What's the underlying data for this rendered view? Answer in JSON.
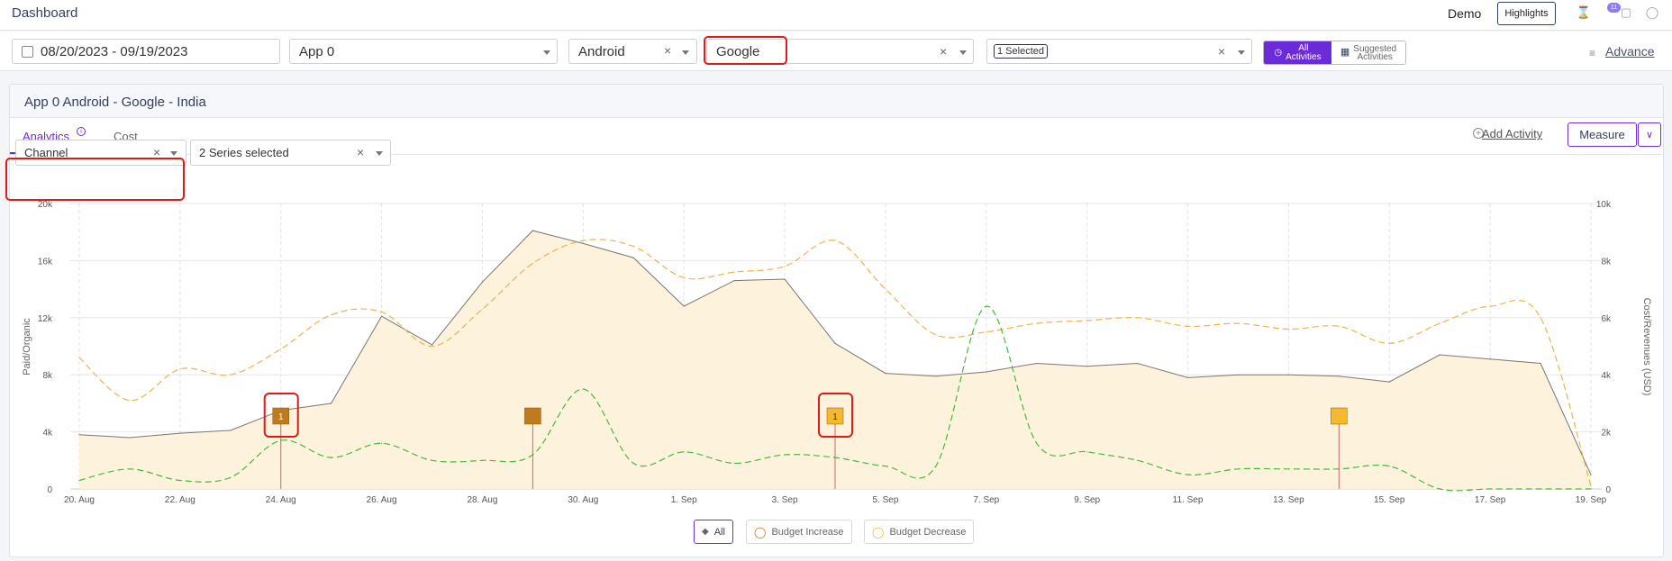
{
  "header": {
    "title": "Dashboard",
    "demo_label": "Demo",
    "highlights_label": "Highlights",
    "notification_count": "11"
  },
  "filters": {
    "date_range": "08/20/2023 - 09/19/2023",
    "app": "App 0",
    "platform": "Android",
    "network": "Google",
    "selection": "1 Selected",
    "all_activities": [
      "All",
      "Activities"
    ],
    "suggested_activities": [
      "Suggested",
      "Activities"
    ],
    "advance_label": "Advance"
  },
  "panel": {
    "title": "App 0 Android - Google - India",
    "tabs": [
      "Analytics",
      "Cost"
    ],
    "info_icon": "i",
    "add_activity_label": "Add Activity",
    "measure_label": "Measure",
    "group_by": "Channel",
    "series_select": "2 Series selected"
  },
  "legend": {
    "all": "All",
    "budget_increase": "Budget Increase",
    "budget_decrease": "Budget Decrease"
  },
  "colors": {
    "accent": "#6c2bd9",
    "paid_line": "#777777",
    "area_fill": "#fdf3dd",
    "cost_line": "#f0b24a",
    "revenue_line": "#46b83a",
    "marker_dark": "#c07a1e",
    "marker_light": "#f5b82e",
    "highlight": "#e01919"
  },
  "chart_data": {
    "type": "line",
    "ylabel": "Paid/Organic",
    "y2label": "Cost/Revenues (USD)",
    "ylim": [
      0,
      20000
    ],
    "y2lim": [
      0,
      10000
    ],
    "y_ticks": [
      "0",
      "4k",
      "8k",
      "12k",
      "16k",
      "20k"
    ],
    "y2_ticks": [
      "0",
      "2k",
      "4k",
      "6k",
      "8k",
      "10k"
    ],
    "x_tick_labels": [
      "20. Aug",
      "22. Aug",
      "24. Aug",
      "26. Aug",
      "28. Aug",
      "30. Aug",
      "1. Sep",
      "3. Sep",
      "5. Sep",
      "7. Sep",
      "9. Sep",
      "11. Sep",
      "13. Sep",
      "15. Sep",
      "17. Sep",
      "19. Sep"
    ],
    "x_start": "2023-08-20",
    "x_end": "2023-09-19",
    "series": [
      {
        "axis": "left",
        "style": "area-solid",
        "values": [
          3800,
          3600,
          3900,
          4100,
          5500,
          6000,
          12100,
          10100,
          14500,
          18100,
          17200,
          16200,
          12800,
          14600,
          14700,
          10200,
          8100,
          7900,
          8200,
          8800,
          8600,
          8800,
          7800,
          8000,
          8000,
          7900,
          7500,
          9400,
          9100,
          8800,
          1000
        ]
      },
      {
        "axis": "right",
        "style": "dashed",
        "values": [
          4600,
          3100,
          4200,
          4000,
          4900,
          6100,
          6200,
          5000,
          6300,
          7900,
          8700,
          8500,
          7400,
          7600,
          7800,
          8700,
          7000,
          5400,
          5500,
          5800,
          5900,
          6000,
          5700,
          5800,
          5600,
          5700,
          5100,
          5800,
          6400,
          6000,
          100
        ]
      },
      {
        "axis": "right",
        "style": "dashed",
        "values": [
          300,
          700,
          300,
          400,
          1700,
          1100,
          1600,
          1000,
          1000,
          1200,
          3500,
          900,
          1300,
          900,
          1200,
          1100,
          800,
          800,
          6400,
          1600,
          1300,
          1000,
          500,
          700,
          700,
          700,
          800,
          0,
          0,
          0,
          0
        ]
      }
    ],
    "markers": [
      {
        "date": "2023-08-24",
        "type": "dark",
        "label": "1",
        "highlighted": true
      },
      {
        "date": "2023-08-29",
        "type": "dark",
        "label": "",
        "highlighted": false
      },
      {
        "date": "2023-09-04",
        "type": "light",
        "label": "1",
        "highlighted": true
      },
      {
        "date": "2023-09-14",
        "type": "light",
        "label": "",
        "highlighted": false
      }
    ]
  }
}
